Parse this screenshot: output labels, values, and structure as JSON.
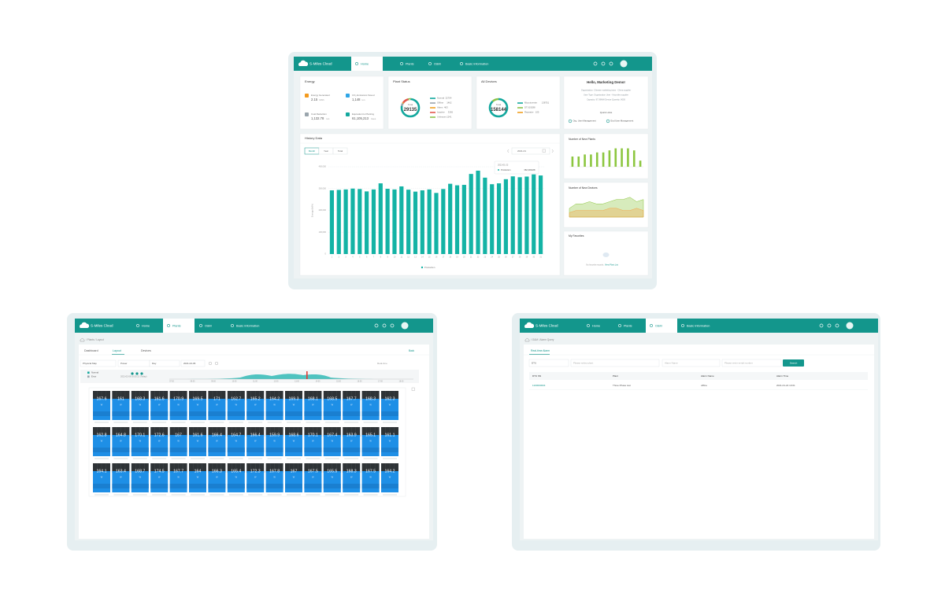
{
  "nav": {
    "logo": "S-Miles Cloud",
    "items": [
      "Home",
      "Plants",
      "O&M",
      "Basic Information"
    ]
  },
  "dashboard": {
    "energy": {
      "title": "Energy",
      "items": [
        {
          "label": "Energy Generated",
          "value": "2.15",
          "unit": "GWh"
        },
        {
          "label": "CO₂ Emissions Saved",
          "value": "1,148",
          "unit": "ton"
        },
        {
          "label": "Coal Reduction",
          "value": "1,132.78",
          "unit": "ton"
        },
        {
          "label": "Equivalent to Planting",
          "value": "61,105,213",
          "unit": "trees"
        }
      ]
    },
    "plant_status": {
      "title": "Plant Status",
      "total_label": "Total",
      "total": 29135,
      "legend": [
        {
          "name": "Normal",
          "value": 22704,
          "color": "#13a89e"
        },
        {
          "name": "Offline",
          "value": 1462,
          "color": "#9aa5ad"
        },
        {
          "name": "Alarm",
          "value": 463,
          "color": "#f0a020"
        },
        {
          "name": "Inactive",
          "value": 3265,
          "color": "#e2574c"
        },
        {
          "name": "Unknown",
          "value": 1241,
          "color": "#8bc34a"
        }
      ]
    },
    "all_devices": {
      "title": "All Devices",
      "total_label": "Total",
      "total": 158144,
      "legend": [
        {
          "name": "Microinverter",
          "value": 138751,
          "color": "#13a89e"
        },
        {
          "name": "DTU",
          "value": 19288,
          "color": "#8bc34a"
        },
        {
          "name": "Repeater",
          "value": 105,
          "color": "#f0a020"
        }
      ]
    },
    "welcome": {
      "title": "Hello, Marketing Demo!",
      "lines": [
        "Organization: Chinese marketing team - China supplier",
        "User Type: Organization User - Hoymiles supplier",
        "Capacity: 97.09MW   Device Quantity: 9005"
      ],
      "quick_links_title": "Quick Links",
      "quick_links": [
        "Org. User Management",
        "End User Management"
      ]
    },
    "history": {
      "title": "History Data",
      "tabs": [
        "Month",
        "Year",
        "Total"
      ],
      "date": "2021-01",
      "y_label": "Energy (kWh)",
      "legend": "Production",
      "tooltip": {
        "date": "2021-01-22",
        "name": "Production",
        "value": "382,000kWh"
      },
      "chart": {
        "type": "bar",
        "color": "#14b3a5",
        "categories": [
          "1",
          "2",
          "3",
          "4",
          "5",
          "6",
          "7",
          "8",
          "9",
          "10",
          "11",
          "12",
          "13",
          "14",
          "15",
          "16",
          "17",
          "18",
          "19",
          "20",
          "21",
          "22",
          "23",
          "24",
          "25",
          "26",
          "27",
          "28",
          "29",
          "30",
          "31"
        ],
        "values": [
          292000,
          294000,
          296000,
          300000,
          298000,
          287000,
          296000,
          324000,
          299000,
          296000,
          310000,
          295000,
          286000,
          292000,
          296000,
          280000,
          298000,
          322000,
          315000,
          317000,
          367000,
          382000,
          350000,
          320000,
          324000,
          343000,
          356000,
          352000,
          355000,
          365000,
          360000
        ],
        "ylim": [
          0,
          400000
        ],
        "yticks": [
          0,
          {
            "value": 100000,
            "label": "100,000"
          },
          {
            "value": 200000,
            "label": "200,000"
          },
          {
            "value": 300000,
            "label": "300,000"
          },
          {
            "value": 400000,
            "label": "400,000"
          }
        ]
      }
    },
    "new_plants": {
      "title": "Number of New Plants",
      "chart": {
        "type": "bar",
        "color": "#8cc63f",
        "ylim": [
          0,
          10
        ],
        "values": [
          5,
          5,
          6,
          6,
          7,
          7,
          8,
          9,
          9,
          9,
          8,
          3
        ]
      }
    },
    "new_devices": {
      "title": "Number of New Devices",
      "chart": {
        "type": "area",
        "ylim": [
          0,
          10
        ],
        "series": [
          {
            "color": "#8cc63f",
            "values": [
              4,
              6,
              6,
              7,
              6,
              6,
              7,
              8,
              8,
              9,
              7,
              8
            ]
          },
          {
            "color": "#f3a54a",
            "values": [
              2,
              3,
              3,
              3,
              3,
              3,
              4,
              4,
              3,
              3,
              4,
              3
            ]
          }
        ]
      }
    },
    "favorites": {
      "title": "My Favorites",
      "empty": "No favorite records.",
      "link": "View Plant List"
    }
  },
  "layout": {
    "breadcrumb": "/ Plants / Layout",
    "tabs": [
      "Dashboard",
      "Layout",
      "Devices"
    ],
    "back": "Back",
    "filters": [
      "Physical Map",
      "Power",
      "Day",
      "2021-02-06"
    ],
    "realtime": "Real-time",
    "legend": [
      "Normal",
      "Error"
    ],
    "timestamp": "2021-02-06 16:53:21 (Today)",
    "timeline": [
      "07:00",
      "08:00",
      "09:00",
      "10:00",
      "11:00",
      "12:00",
      "13:00",
      "14:00",
      "15:00",
      "16:00",
      "17:00",
      "18:00"
    ],
    "unit": "W",
    "rows": [
      [
        167.6,
        161,
        168.3,
        161.6,
        170.9,
        169.5,
        171,
        162.7,
        165.2,
        164.2,
        169.3,
        168.1,
        168.5,
        167.7,
        168.3,
        162.3
      ],
      [
        162.8,
        164.8,
        170.1,
        172.6,
        167,
        161.6,
        166.4,
        164.7,
        166.4,
        159.9,
        168.6,
        170.1,
        167.4,
        163.9,
        165.1,
        161.1
      ],
      [
        164.1,
        163.4,
        168.7,
        174.5,
        167.7,
        164,
        166.3,
        165.4,
        172.3,
        167.8,
        167,
        167.5,
        165.5,
        168.3,
        167.5,
        164.2
      ]
    ]
  },
  "alarm": {
    "breadcrumb": "/ O&M / Alarm Query",
    "tab": "Real-time Alarm",
    "filters": [
      "DTU",
      "Please select plant",
      "Alarm Name",
      "Please enter serial number"
    ],
    "search": "Search",
    "columns": [
      "DTU SN",
      "Plant",
      "Alarm Name",
      "Alarm Time"
    ],
    "rows": [
      [
        "1100000004",
        "Three Phase test",
        "offline",
        "2021-01-22 10:01"
      ]
    ]
  }
}
